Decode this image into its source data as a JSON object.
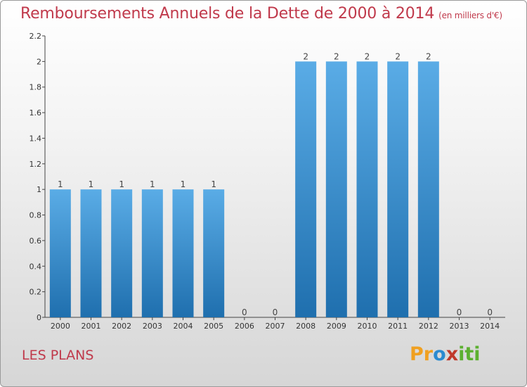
{
  "chart_data": {
    "type": "bar",
    "title": "Remboursements Annuels de la Dette de 2000 à 2014",
    "subtitle": "(en milliers d'€)",
    "categories": [
      "2000",
      "2001",
      "2002",
      "2003",
      "2004",
      "2005",
      "2006",
      "2007",
      "2008",
      "2009",
      "2010",
      "2011",
      "2012",
      "2013",
      "2014"
    ],
    "values": [
      1,
      1,
      1,
      1,
      1,
      1,
      0,
      0,
      2,
      2,
      2,
      2,
      2,
      0,
      0
    ],
    "data_labels": [
      "1",
      "1",
      "1",
      "1",
      "1",
      "1",
      "0",
      "0",
      "2",
      "2",
      "2",
      "2",
      "2",
      "0",
      "0"
    ],
    "y_ticks": [
      0,
      0.2,
      0.4,
      0.6,
      0.8,
      1,
      1.2,
      1.4,
      1.6,
      1.8,
      2,
      2.2
    ],
    "y_tick_labels": [
      "0",
      "0.2",
      "0.4",
      "0.6",
      "0.8",
      "1",
      "1.2",
      "1.4",
      "1.6",
      "1.8",
      "2",
      "2.2"
    ],
    "ylim": [
      0,
      2.2
    ],
    "xlabel": "",
    "ylabel": "",
    "grid": false,
    "bar_color_top": "#5aace6",
    "bar_color_bottom": "#1f6fae"
  },
  "commune": "LES PLANS",
  "logo": {
    "letters": [
      "P",
      "r",
      "o",
      "x",
      "i",
      "t",
      "i"
    ],
    "colors": [
      "#f0a020",
      "#f0a020",
      "#2a8ad0",
      "#c0392b",
      "#5cb030",
      "#5cb030",
      "#5cb030"
    ]
  },
  "colors": {
    "title": "#c0394b",
    "axis": "#333333"
  }
}
